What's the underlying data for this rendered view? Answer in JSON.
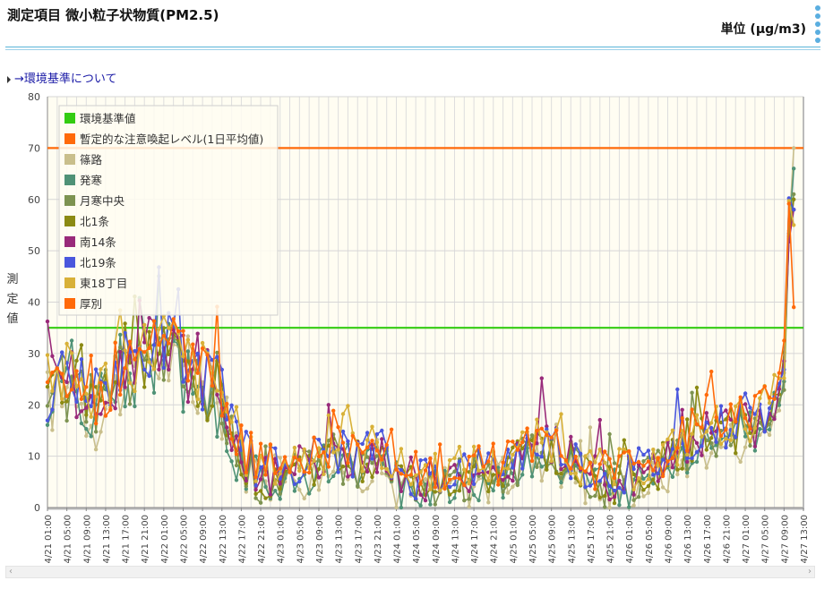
{
  "header": {
    "title": "測定項目 微小粒子状物質(PM2.5)",
    "unit": "単位 (μg/m3)"
  },
  "link": {
    "label": "→環境基準について"
  },
  "chart_data": {
    "type": "line",
    "ylabel": "測定値",
    "xlabel": "",
    "ylim": [
      0,
      80
    ],
    "yticks": [
      0,
      10,
      20,
      30,
      40,
      50,
      60,
      70,
      80
    ],
    "grid": true,
    "legend_position": "top-left",
    "x_tick_labels": [
      "4/21 01:00",
      "4/21 05:00",
      "4/21 09:00",
      "4/21 13:00",
      "4/21 17:00",
      "4/21 21:00",
      "4/22 01:00",
      "4/22 05:00",
      "4/22 09:00",
      "4/22 13:00",
      "4/22 17:00",
      "4/22 21:00",
      "4/23 01:00",
      "4/23 05:00",
      "4/23 09:00",
      "4/23 13:00",
      "4/23 17:00",
      "4/23 21:00",
      "4/24 01:00",
      "4/24 05:00",
      "4/24 09:00",
      "4/24 13:00",
      "4/24 17:00",
      "4/24 21:00",
      "4/25 01:00",
      "4/25 05:00",
      "4/25 09:00",
      "4/25 13:00",
      "4/25 17:00",
      "4/25 21:00",
      "4/26 01:00",
      "4/26 05:00",
      "4/26 09:00",
      "4/26 13:00",
      "4/26 17:00",
      "4/26 21:00",
      "4/27 01:00",
      "4/27 05:00",
      "4/27 09:00",
      "4/27 13:00"
    ],
    "hours_per_tick": 4,
    "x_range_hours": [
      0,
      156
    ],
    "reference_lines": [
      {
        "name": "環境基準値",
        "value": 35,
        "color": "#33cc11"
      },
      {
        "name": "暫定的な注意喚起レベル(1日平均値)",
        "value": 70,
        "color": "#ff6a0a"
      }
    ],
    "series": [
      {
        "name": "篠路",
        "color": "#c9bf8c"
      },
      {
        "name": "発寒",
        "color": "#4f9276"
      },
      {
        "name": "月寒中央",
        "color": "#7d9351"
      },
      {
        "name": "北1条",
        "color": "#8b8a13"
      },
      {
        "name": "南14条",
        "color": "#992a7a"
      },
      {
        "name": "北19条",
        "color": "#4a57dd"
      },
      {
        "name": "東18丁目",
        "color": "#d8b138"
      },
      {
        "name": "厚別",
        "color": "#ff6a0a"
      }
    ],
    "anchors": [
      [
        0,
        23
      ],
      [
        5,
        24
      ],
      [
        10,
        20
      ],
      [
        15,
        26
      ],
      [
        20,
        29
      ],
      [
        24,
        32
      ],
      [
        28,
        27
      ],
      [
        33,
        24
      ],
      [
        36,
        21
      ],
      [
        40,
        10
      ],
      [
        44,
        6
      ],
      [
        48,
        7
      ],
      [
        52,
        8
      ],
      [
        56,
        9
      ],
      [
        60,
        10
      ],
      [
        64,
        9
      ],
      [
        68,
        11
      ],
      [
        72,
        6
      ],
      [
        76,
        5
      ],
      [
        80,
        6
      ],
      [
        84,
        6
      ],
      [
        88,
        7
      ],
      [
        92,
        6
      ],
      [
        96,
        9
      ],
      [
        100,
        11
      ],
      [
        104,
        12
      ],
      [
        108,
        9
      ],
      [
        112,
        6
      ],
      [
        116,
        5
      ],
      [
        120,
        6
      ],
      [
        124,
        7
      ],
      [
        128,
        9
      ],
      [
        132,
        12
      ],
      [
        136,
        14
      ],
      [
        140,
        15
      ],
      [
        146,
        16
      ],
      [
        150,
        20
      ],
      [
        152,
        28
      ],
      [
        153,
        55
      ],
      [
        154,
        70
      ]
    ],
    "series_end_values": [
      70,
      66,
      61,
      60,
      58,
      58,
      55,
      39
    ]
  },
  "scrollbar": {
    "left_arrow": "‹",
    "right_arrow": "›"
  }
}
